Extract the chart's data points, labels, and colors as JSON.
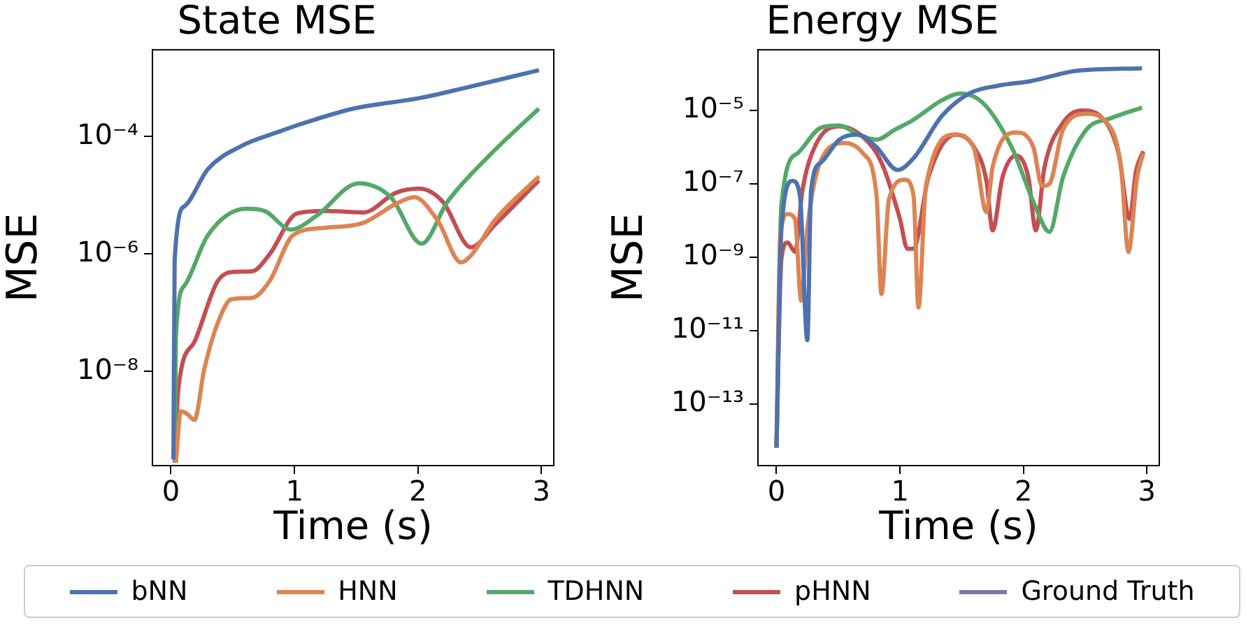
{
  "chart_data": [
    {
      "type": "line",
      "title": "State MSE",
      "xlabel": "Time (s)",
      "ylabel": "MSE",
      "log": "y",
      "grid": false,
      "legend": "bottom",
      "xlim": [
        -0.15,
        3.1
      ],
      "xticks": [
        0,
        1,
        2,
        3
      ],
      "ylim": [
        2.5e-10,
        0.003
      ],
      "yticks": [
        {
          "value": 1e-08,
          "label": "10⁻⁸"
        },
        {
          "value": 1e-06,
          "label": "10⁻⁶"
        },
        {
          "value": 0.0001,
          "label": "10⁻⁴"
        }
      ],
      "series": [
        {
          "name": "bNN",
          "color": "#4c72b0",
          "x": [
            0.02,
            0.03,
            0.11,
            0.3,
            0.57,
            0.87,
            1.0,
            1.48,
            2.01,
            2.39,
            2.98
          ],
          "values": [
            3.2e-10,
            7.9e-07,
            6.5e-06,
            2.8e-05,
            6.9e-05,
            0.00012,
            0.00015,
            0.0003,
            0.00045,
            0.00068,
            0.00135
          ]
        },
        {
          "name": "HNN",
          "color": "#dd8452",
          "x": [
            0.04,
            0.08,
            0.13,
            0.19,
            0.27,
            0.38,
            0.49,
            0.66,
            0.8,
            0.99,
            1.25,
            1.56,
            1.82,
            1.97,
            2.16,
            2.35,
            2.43,
            2.62,
            2.98
          ],
          "values": [
            2.8e-10,
            2.1e-09,
            1.9e-09,
            1.5e-09,
            1.1e-08,
            6.8e-08,
            1.7e-07,
            1.8e-07,
            3.5e-07,
            2.1e-06,
            2.8e-06,
            3.4e-06,
            7.1e-06,
            9.3e-06,
            3.7e-06,
            7.2e-07,
            9.5e-07,
            3.7e-06,
            2.1e-05
          ]
        },
        {
          "name": "TDHNN",
          "color": "#55a868",
          "x": [
            0.03,
            0.04,
            0.11,
            0.3,
            0.61,
            0.76,
            0.97,
            1.18,
            1.52,
            1.78,
            2.03,
            2.24,
            2.58,
            2.98
          ],
          "values": [
            2.8e-10,
            3.9e-08,
            2.9e-07,
            2.1e-06,
            5.9e-06,
            5.4e-06,
            2.6e-06,
            4.5e-06,
            1.6e-05,
            9.3e-06,
            1.5e-06,
            7.8e-06,
            4.8e-05,
            0.0003
          ]
        },
        {
          "name": "pHNN",
          "color": "#c44e52",
          "x": [
            0.03,
            0.06,
            0.19,
            0.38,
            0.53,
            0.66,
            0.8,
            1.02,
            1.25,
            1.56,
            1.82,
            2.01,
            2.2,
            2.43,
            2.62,
            2.98
          ],
          "values": [
            2.8e-10,
            5.1e-09,
            3.2e-08,
            3.5e-07,
            5e-07,
            5.1e-07,
            1e-06,
            4.9e-06,
            5.4e-06,
            5.1e-06,
            1.1e-05,
            1.3e-05,
            7.8e-06,
            1.3e-06,
            3.1e-06,
            1.8e-05
          ]
        },
        {
          "name": "Ground Truth",
          "color": "#8172b2"
        }
      ]
    },
    {
      "type": "line",
      "title": "Energy MSE",
      "xlabel": "Time (s)",
      "ylabel": "MSE",
      "log": "y",
      "grid": false,
      "xlim": [
        -0.15,
        3.1
      ],
      "xticks": [
        0,
        1,
        2,
        3
      ],
      "ylim": [
        2.1e-15,
        0.00045
      ],
      "yticks": [
        {
          "value": 1e-13,
          "label": "10⁻¹³"
        },
        {
          "value": 1e-11,
          "label": "10⁻¹¹"
        },
        {
          "value": 1e-09,
          "label": "10⁻⁹"
        },
        {
          "value": 1e-07,
          "label": "10⁻⁷"
        },
        {
          "value": 1e-05,
          "label": "10⁻⁵"
        }
      ],
      "series": [
        {
          "color": "#4c72b0",
          "x": [
            0,
            0.04,
            0.13,
            0.19,
            0.25,
            0.28,
            0.36,
            0.51,
            0.66,
            0.81,
            0.98,
            1.11,
            1.34,
            1.57,
            1.79,
            2.06,
            2.43,
            2.96
          ],
          "values": [
            6.5e-15,
            6.2e-09,
            1.2e-07,
            4.8e-08,
            5.5e-12,
            6.5e-08,
            3.8e-07,
            1.6e-06,
            2.2e-06,
            1e-06,
            2.4e-07,
            5e-07,
            7.1e-06,
            3e-05,
            4.7e-05,
            6.3e-05,
            0.00012,
            0.00014
          ]
        },
        {
          "color": "#dd8452",
          "x": [
            0,
            0.03,
            0.09,
            0.15,
            0.2,
            0.25,
            0.36,
            0.55,
            0.7,
            0.81,
            0.85,
            0.91,
            1.04,
            1.11,
            1.15,
            1.21,
            1.45,
            1.6,
            1.7,
            1.75,
            1.94,
            2.08,
            2.15,
            2.21,
            2.32,
            2.51,
            2.66,
            2.79,
            2.85,
            2.92,
            2.97
          ],
          "values": [
            6.5e-15,
            3.5e-09,
            1.5e-08,
            1.1e-08,
            6.6e-11,
            6.2e-09,
            4.4e-07,
            1.3e-06,
            6.8e-07,
            4.8e-08,
            1e-10,
            3.6e-08,
            1.3e-07,
            4.8e-08,
            4.3e-11,
            8.7e-08,
            2.2e-06,
            9.1e-07,
            1.7e-08,
            2.8e-07,
            2.5e-06,
            1e-06,
            8.7e-08,
            1e-07,
            3e-06,
            8.1e-06,
            5.2e-06,
            2.8e-07,
            1.4e-09,
            1.5e-07,
            6.8e-07
          ]
        },
        {
          "color": "#55a868",
          "x": [
            0,
            0.04,
            0.17,
            0.36,
            0.51,
            0.66,
            0.81,
            0.96,
            1.11,
            1.34,
            1.49,
            1.68,
            1.91,
            2.09,
            2.21,
            2.32,
            2.51,
            2.7,
            2.96
          ],
          "values": [
            6.5e-15,
            2.7e-08,
            6.8e-07,
            3.4e-06,
            3.9e-06,
            2.2e-06,
            1.6e-06,
            3e-06,
            5.6e-06,
            1.9e-05,
            2.9e-05,
            1.5e-05,
            9.1e-07,
            2.7e-08,
            4.9e-09,
            1.5e-07,
            3e-06,
            6e-06,
            1.2e-05
          ]
        },
        {
          "color": "#c44e52",
          "x": [
            0,
            0.04,
            0.09,
            0.15,
            0.21,
            0.32,
            0.51,
            0.7,
            0.85,
            1.0,
            1.06,
            1.11,
            1.23,
            1.45,
            1.6,
            1.7,
            1.75,
            1.83,
            1.94,
            2.04,
            2.1,
            2.17,
            2.32,
            2.47,
            2.62,
            2.77,
            2.86,
            2.91,
            2.97
          ],
          "values": [
            6.5e-15,
            9.3e-10,
            2.5e-09,
            1.4e-09,
            6.5e-08,
            1.2e-06,
            3.7e-06,
            1.9e-06,
            3.8e-07,
            1.1e-08,
            1.7e-09,
            1.7e-09,
            1.5e-07,
            2.2e-06,
            1e-06,
            1.2e-07,
            5.4e-09,
            1.5e-07,
            5.9e-07,
            1.5e-07,
            5.4e-09,
            2.8e-07,
            4.6e-06,
            1e-05,
            7.1e-06,
            6.8e-07,
            1.1e-08,
            2.1e-07,
            7.8e-07
          ]
        }
      ]
    }
  ]
}
